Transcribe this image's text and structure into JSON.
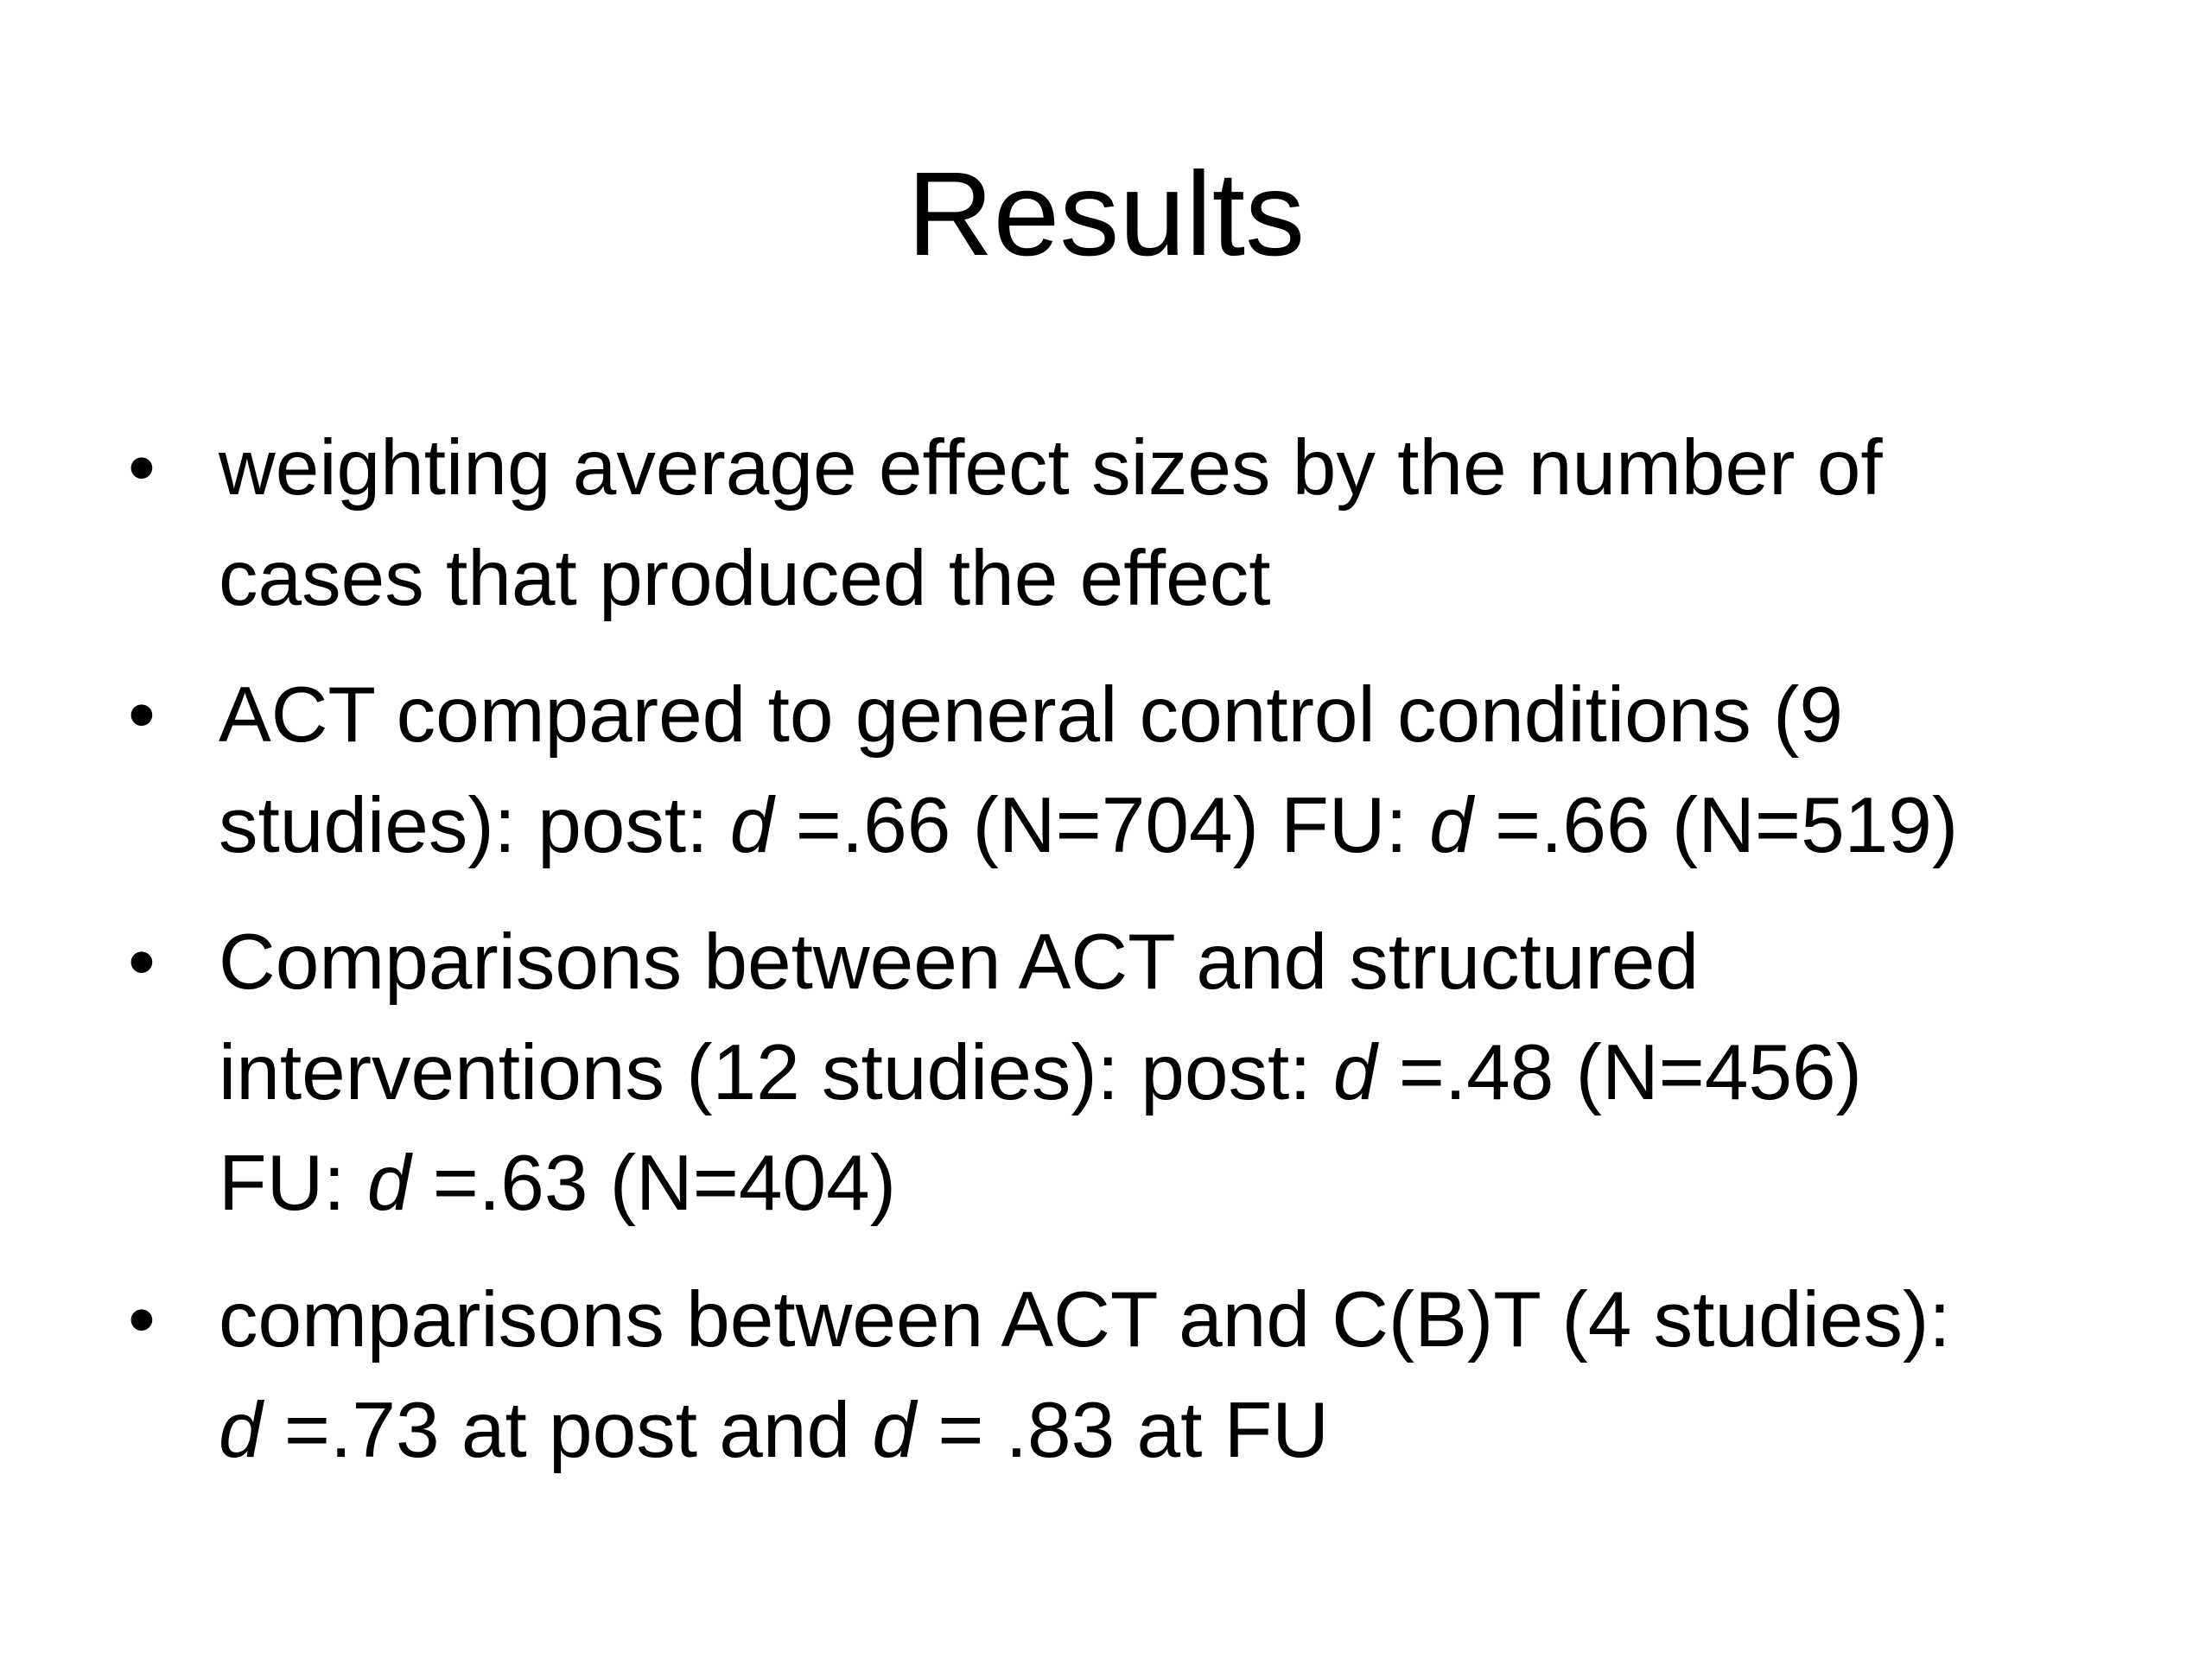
{
  "slide": {
    "title": "Results",
    "bullets": [
      {
        "lines": [
          "weighting average effect sizes by the number of",
          "cases that produced the effect"
        ]
      },
      {
        "lines": [
          "ACT compared to general control conditions (9",
          {
            "p1": "studies): post: ",
            "v1": "d",
            "p2": " =.66 (N=704) FU: ",
            "v2": "d",
            "p3": " =.66 (N=519)"
          }
        ]
      },
      {
        "lines": [
          "Comparisons between ACT and structured",
          {
            "p1": "interventions (12 studies): post: ",
            "v1": "d",
            "p2": " =.48 (N=456)"
          },
          {
            "p1": "FU: ",
            "v1": "d",
            "p2": " =.63 (N=404)"
          }
        ]
      },
      {
        "lines": [
          "comparisons between ACT and C(B)T (4 studies):",
          {
            "v1": "d",
            "p1": " =.73 at post and ",
            "v2": "d",
            "p2": " = .83 at FU"
          }
        ]
      }
    ],
    "bullet_glyph": "•"
  }
}
